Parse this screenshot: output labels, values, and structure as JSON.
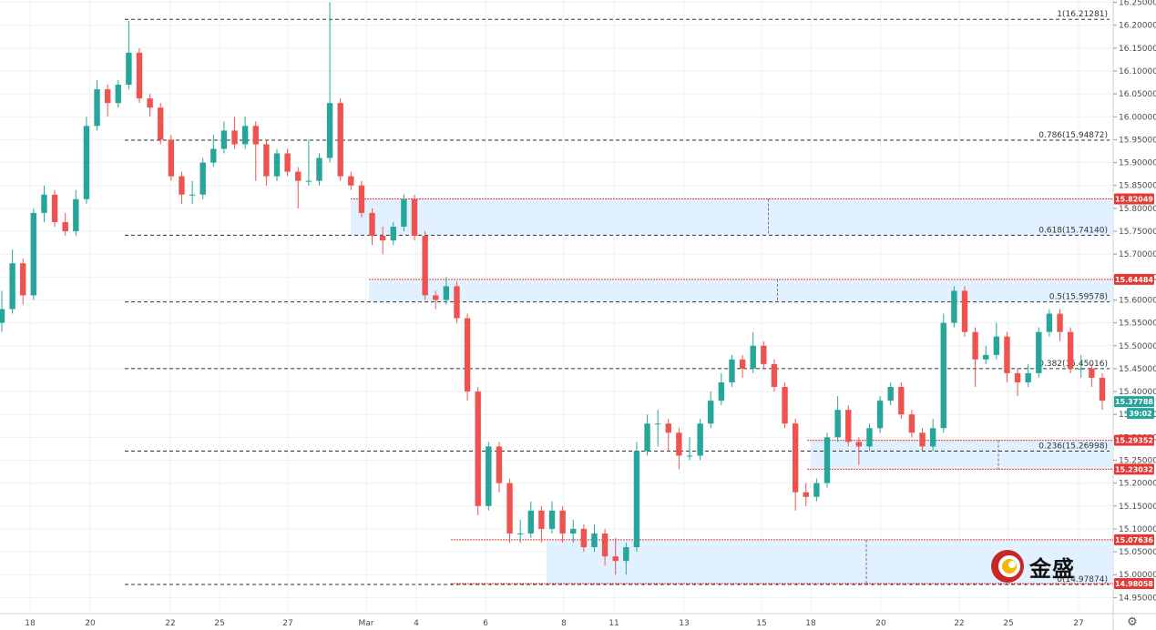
{
  "chart_data": {
    "type": "candlestick",
    "title": "",
    "xlabel": "",
    "ylabel": "",
    "ylim": [
      14.915,
      16.255
    ],
    "grid": true,
    "colors": {
      "up": "#26a69a",
      "down": "#ef5350",
      "zone_fill": "#ddeeff",
      "zone_line": "#e53935",
      "fib_line": "#333333"
    },
    "y_ticks": [
      "16.25000",
      "16.20000",
      "16.15000",
      "16.10000",
      "16.05000",
      "16.00000",
      "15.95000",
      "15.90000",
      "15.85000",
      "15.80000",
      "15.75000",
      "15.70000",
      "15.65000",
      "15.60000",
      "15.55000",
      "15.50000",
      "15.45000",
      "15.40000",
      "15.35000",
      "15.30000",
      "15.25000",
      "15.20000",
      "15.15000",
      "15.10000",
      "15.05000",
      "15.00000",
      "14.95000"
    ],
    "x_ticks": [
      "18",
      "20",
      "22",
      "25",
      "27",
      "Mar",
      "4",
      "6",
      "8",
      "11",
      "13",
      "15",
      "18",
      "20",
      "22",
      "25",
      "27"
    ],
    "fib_levels": [
      {
        "label": "1(16.21281)",
        "value": 16.21281
      },
      {
        "label": "0.786(15.94872)",
        "value": 15.94872
      },
      {
        "label": "0.618(15.74140)",
        "value": 15.7414
      },
      {
        "label": "0.5(15.59578)",
        "value": 15.59578
      },
      {
        "label": "0.382(15.45016)",
        "value": 15.45016
      },
      {
        "label": "0.236(15.26998)",
        "value": 15.26998
      },
      {
        "label": "0(14.97874)",
        "value": 14.97874
      }
    ],
    "zones": [
      {
        "top": 15.82049,
        "bottom": 15.7414,
        "top_tag": "15.82049"
      },
      {
        "top": 15.64484,
        "bottom": 15.59578,
        "top_tag": "15.64484"
      },
      {
        "top": 15.29352,
        "bottom": 15.23032,
        "top_tag": "15.29352",
        "bottom_tag": "15.23032"
      },
      {
        "top": 15.07636,
        "bottom": 14.98058,
        "top_tag": "15.07636",
        "bottom_tag": "14.98058"
      }
    ],
    "current_price": {
      "value": 15.37788,
      "label": "15.37788",
      "countdown": "39:02"
    },
    "series": [
      {
        "name": "",
        "close": [
          15.58,
          15.68,
          15.61,
          15.79,
          15.83,
          15.77,
          15.75,
          15.82,
          15.98,
          16.06,
          16.03,
          16.07,
          16.14,
          16.04,
          16.02,
          15.95,
          15.87,
          15.83,
          15.83,
          15.9,
          15.93,
          15.97,
          15.94,
          15.98,
          15.94,
          15.87,
          15.92,
          15.88,
          15.86,
          15.86,
          15.91,
          16.03,
          15.87,
          15.85,
          15.79,
          15.74,
          15.73,
          15.76,
          15.82,
          15.74,
          15.61,
          15.6,
          15.63,
          15.56,
          15.4,
          15.15,
          15.28,
          15.2,
          15.09,
          15.09,
          15.14,
          15.1,
          15.14,
          15.09,
          15.1,
          15.06,
          15.09,
          15.04,
          15.03,
          15.06,
          15.27,
          15.33,
          15.33,
          15.31,
          15.26,
          15.26,
          15.33,
          15.38,
          15.42,
          15.47,
          15.45,
          15.5,
          15.46,
          15.41,
          15.33,
          15.18,
          15.17,
          15.2,
          15.3,
          15.36,
          15.29,
          15.28,
          15.32,
          15.38,
          15.41,
          15.35,
          15.31,
          15.28,
          15.32,
          15.55,
          15.62,
          15.53,
          15.47,
          15.48,
          15.52,
          15.44,
          15.42,
          15.44,
          15.53,
          15.57,
          15.53,
          15.45,
          15.45,
          15.43,
          15.38
        ]
      }
    ],
    "ohlc": [
      [
        15.55,
        15.62,
        15.53,
        15.58
      ],
      [
        15.58,
        15.71,
        15.57,
        15.68
      ],
      [
        15.68,
        15.69,
        15.59,
        15.61
      ],
      [
        15.61,
        15.8,
        15.6,
        15.79
      ],
      [
        15.79,
        15.85,
        15.77,
        15.83
      ],
      [
        15.83,
        15.84,
        15.76,
        15.77
      ],
      [
        15.77,
        15.79,
        15.74,
        15.75
      ],
      [
        15.75,
        15.84,
        15.74,
        15.82
      ],
      [
        15.82,
        16.0,
        15.81,
        15.98
      ],
      [
        15.98,
        16.08,
        15.97,
        16.06
      ],
      [
        16.06,
        16.07,
        16.0,
        16.03
      ],
      [
        16.03,
        16.08,
        16.02,
        16.07
      ],
      [
        16.07,
        16.21,
        16.06,
        16.14
      ],
      [
        16.14,
        16.15,
        16.03,
        16.04
      ],
      [
        16.04,
        16.05,
        16.0,
        16.02
      ],
      [
        16.02,
        16.03,
        15.94,
        15.95
      ],
      [
        15.95,
        15.96,
        15.86,
        15.87
      ],
      [
        15.87,
        15.88,
        15.81,
        15.83
      ],
      [
        15.83,
        15.86,
        15.81,
        15.83
      ],
      [
        15.83,
        15.91,
        15.82,
        15.9
      ],
      [
        15.9,
        15.96,
        15.89,
        15.93
      ],
      [
        15.93,
        15.99,
        15.92,
        15.97
      ],
      [
        15.97,
        16.0,
        15.93,
        15.94
      ],
      [
        15.94,
        16.0,
        15.93,
        15.98
      ],
      [
        15.98,
        15.99,
        15.86,
        15.94
      ],
      [
        15.94,
        15.95,
        15.85,
        15.87
      ],
      [
        15.87,
        15.93,
        15.86,
        15.92
      ],
      [
        15.92,
        15.93,
        15.87,
        15.88
      ],
      [
        15.88,
        15.89,
        15.8,
        15.86
      ],
      [
        15.86,
        15.95,
        15.85,
        15.86
      ],
      [
        15.86,
        15.92,
        15.85,
        15.91
      ],
      [
        15.91,
        16.25,
        15.9,
        16.03
      ],
      [
        16.03,
        16.04,
        15.86,
        15.87
      ],
      [
        15.87,
        15.88,
        15.84,
        15.85
      ],
      [
        15.85,
        15.86,
        15.78,
        15.79
      ],
      [
        15.79,
        15.8,
        15.72,
        15.74
      ],
      [
        15.74,
        15.76,
        15.7,
        15.73
      ],
      [
        15.73,
        15.77,
        15.72,
        15.76
      ],
      [
        15.76,
        15.83,
        15.75,
        15.82
      ],
      [
        15.82,
        15.83,
        15.73,
        15.74
      ],
      [
        15.74,
        15.75,
        15.6,
        15.61
      ],
      [
        15.61,
        15.62,
        15.58,
        15.6
      ],
      [
        15.6,
        15.65,
        15.59,
        15.63
      ],
      [
        15.63,
        15.64,
        15.55,
        15.56
      ],
      [
        15.56,
        15.57,
        15.38,
        15.4
      ],
      [
        15.4,
        15.41,
        15.13,
        15.15
      ],
      [
        15.15,
        15.29,
        15.14,
        15.28
      ],
      [
        15.28,
        15.29,
        15.18,
        15.2
      ],
      [
        15.2,
        15.21,
        15.07,
        15.09
      ],
      [
        15.09,
        15.12,
        15.07,
        15.09
      ],
      [
        15.09,
        15.16,
        15.08,
        15.14
      ],
      [
        15.14,
        15.15,
        15.07,
        15.1
      ],
      [
        15.1,
        15.16,
        15.09,
        15.14
      ],
      [
        15.14,
        15.15,
        15.07,
        15.09
      ],
      [
        15.09,
        15.12,
        15.07,
        15.1
      ],
      [
        15.1,
        15.11,
        15.05,
        15.06
      ],
      [
        15.06,
        15.11,
        15.05,
        15.09
      ],
      [
        15.09,
        15.1,
        15.02,
        15.04
      ],
      [
        15.04,
        15.08,
        15.0,
        15.03
      ],
      [
        15.03,
        15.07,
        15.0,
        15.06
      ],
      [
        15.06,
        15.29,
        15.05,
        15.27
      ],
      [
        15.27,
        15.35,
        15.26,
        15.33
      ],
      [
        15.33,
        15.36,
        15.28,
        15.33
      ],
      [
        15.33,
        15.34,
        15.27,
        15.31
      ],
      [
        15.31,
        15.32,
        15.23,
        15.26
      ],
      [
        15.26,
        15.3,
        15.25,
        15.26
      ],
      [
        15.26,
        15.34,
        15.25,
        15.33
      ],
      [
        15.33,
        15.4,
        15.32,
        15.38
      ],
      [
        15.38,
        15.44,
        15.37,
        15.42
      ],
      [
        15.42,
        15.48,
        15.41,
        15.47
      ],
      [
        15.47,
        15.48,
        15.43,
        15.45
      ],
      [
        15.45,
        15.53,
        15.44,
        15.5
      ],
      [
        15.5,
        15.51,
        15.45,
        15.46
      ],
      [
        15.46,
        15.47,
        15.4,
        15.41
      ],
      [
        15.41,
        15.42,
        15.32,
        15.33
      ],
      [
        15.33,
        15.34,
        15.14,
        15.18
      ],
      [
        15.18,
        15.2,
        15.15,
        15.17
      ],
      [
        15.17,
        15.21,
        15.16,
        15.2
      ],
      [
        15.2,
        15.31,
        15.19,
        15.3
      ],
      [
        15.3,
        15.39,
        15.29,
        15.36
      ],
      [
        15.36,
        15.37,
        15.28,
        15.29
      ],
      [
        15.29,
        15.3,
        15.24,
        15.28
      ],
      [
        15.28,
        15.33,
        15.27,
        15.32
      ],
      [
        15.32,
        15.39,
        15.31,
        15.38
      ],
      [
        15.38,
        15.42,
        15.37,
        15.41
      ],
      [
        15.41,
        15.42,
        15.34,
        15.35
      ],
      [
        15.35,
        15.36,
        15.3,
        15.31
      ],
      [
        15.31,
        15.32,
        15.27,
        15.28
      ],
      [
        15.28,
        15.34,
        15.27,
        15.32
      ],
      [
        15.32,
        15.57,
        15.31,
        15.55
      ],
      [
        15.55,
        15.63,
        15.54,
        15.62
      ],
      [
        15.62,
        15.63,
        15.52,
        15.53
      ],
      [
        15.53,
        15.54,
        15.41,
        15.47
      ],
      [
        15.47,
        15.5,
        15.46,
        15.48
      ],
      [
        15.48,
        15.55,
        15.47,
        15.52
      ],
      [
        15.52,
        15.53,
        15.42,
        15.44
      ],
      [
        15.44,
        15.45,
        15.39,
        15.42
      ],
      [
        15.42,
        15.46,
        15.41,
        15.44
      ],
      [
        15.44,
        15.54,
        15.43,
        15.53
      ],
      [
        15.53,
        15.58,
        15.52,
        15.57
      ],
      [
        15.57,
        15.58,
        15.51,
        15.53
      ],
      [
        15.53,
        15.54,
        15.44,
        15.45
      ],
      [
        15.45,
        15.48,
        15.43,
        15.45
      ],
      [
        15.45,
        15.46,
        15.41,
        15.43
      ],
      [
        15.43,
        15.44,
        15.36,
        15.38
      ]
    ]
  },
  "logo": {
    "text": "金盛"
  },
  "icons": {
    "settings": "gear-icon"
  }
}
